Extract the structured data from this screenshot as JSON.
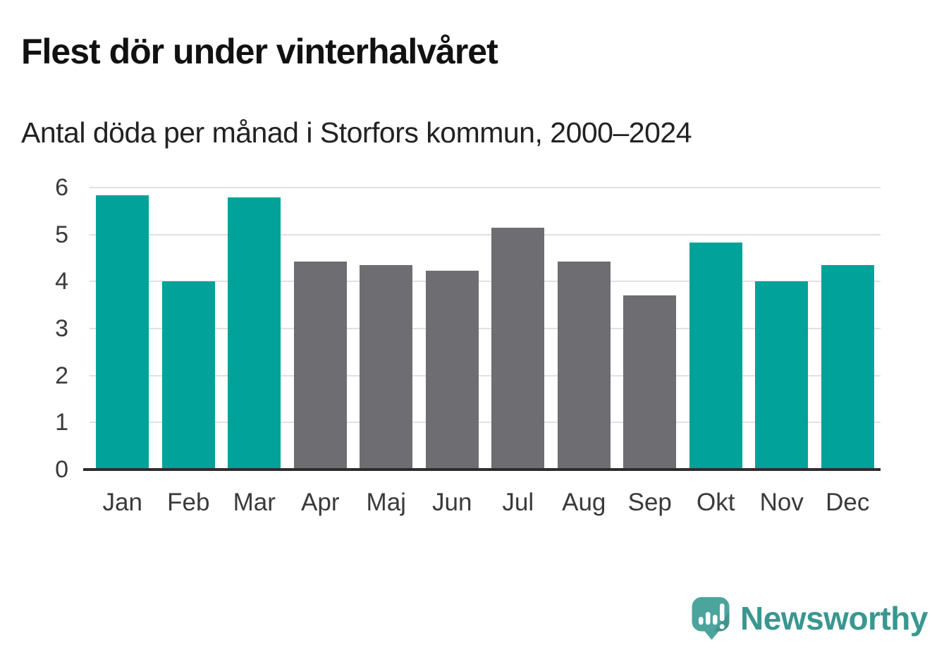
{
  "header": {
    "title": "Flest dör under vinterhalvåret",
    "subtitle": "Antal döda per månad i Storfors kommun, 2000–2024"
  },
  "chart_data": {
    "type": "bar",
    "title": "Flest dör under vinterhalvåret",
    "subtitle": "Antal döda per månad i Storfors kommun, 2000–2024",
    "categories": [
      "Jan",
      "Feb",
      "Mar",
      "Apr",
      "Maj",
      "Jun",
      "Jul",
      "Aug",
      "Sep",
      "Okt",
      "Nov",
      "Dec"
    ],
    "values": [
      5.84,
      4.0,
      5.79,
      4.43,
      4.35,
      4.23,
      5.14,
      4.42,
      3.7,
      4.83,
      4.01,
      4.35
    ],
    "bar_color_keys": [
      "winter",
      "winter",
      "winter",
      "summer",
      "summer",
      "summer",
      "summer",
      "summer",
      "summer",
      "winter",
      "winter",
      "winter"
    ],
    "colors": {
      "winter": "#00a29a",
      "summer": "#6d6d72"
    },
    "xlabel": "",
    "ylabel": "",
    "ylim": [
      0,
      6
    ],
    "yticks": [
      0,
      1,
      2,
      3,
      4,
      5,
      6
    ],
    "grid": "horizontal",
    "legend": "none"
  },
  "footer": {
    "brand_name": "Newsworthy",
    "logo_icon": "newsworthy-speech-bubble-chart-icon"
  },
  "theme": {
    "title_color": "#111111",
    "subtitle_color": "#222222",
    "tick_color": "#3a3a3a",
    "gridline_color": "#e1e1e1",
    "axis_color": "#2d2d2d",
    "brand_teal": "#3a9690",
    "logo_fill": "#4ba59d"
  }
}
